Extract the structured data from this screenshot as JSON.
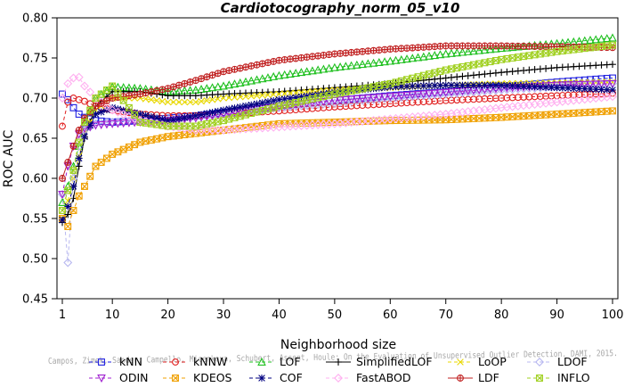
{
  "chart_data": {
    "type": "line",
    "title": "Cardiotocography_norm_05_v10",
    "xlabel": "Neighborhood size",
    "ylabel": "ROC AUC",
    "xlim": [
      1,
      100
    ],
    "ylim": [
      0.45,
      0.8
    ],
    "xticks": [
      1,
      10,
      20,
      30,
      40,
      50,
      60,
      70,
      80,
      90,
      100
    ],
    "yticks": [
      "0.45",
      "0.50",
      "0.55",
      "0.60",
      "0.65",
      "0.70",
      "0.75",
      "0.80"
    ],
    "grid": false,
    "legend_position": "bottom",
    "watermark": "Campos, Zimek, Sander, Campello, Micenkova, Schubert, Assent, Houle: On the Evaluation of Unsupervised Outlier Detection. DAMI, 2015.",
    "series": [
      {
        "name": "kNN",
        "color": "#2020e0",
        "marker": "square",
        "dash": "4,3",
        "points": [
          [
            1,
            0.705
          ],
          [
            2,
            0.698
          ],
          [
            3,
            0.688
          ],
          [
            4,
            0.68
          ],
          [
            5,
            0.676
          ],
          [
            7,
            0.672
          ],
          [
            10,
            0.67
          ],
          [
            15,
            0.672
          ],
          [
            20,
            0.675
          ],
          [
            25,
            0.678
          ],
          [
            30,
            0.682
          ],
          [
            40,
            0.69
          ],
          [
            50,
            0.697
          ],
          [
            60,
            0.703
          ],
          [
            70,
            0.708
          ],
          [
            80,
            0.714
          ],
          [
            90,
            0.72
          ],
          [
            100,
            0.725
          ]
        ]
      },
      {
        "name": "kNNW",
        "color": "#e02020",
        "marker": "circle",
        "dash": "4,3",
        "points": [
          [
            1,
            0.665
          ],
          [
            2,
            0.695
          ],
          [
            3,
            0.7
          ],
          [
            4,
            0.698
          ],
          [
            5,
            0.696
          ],
          [
            7,
            0.69
          ],
          [
            10,
            0.685
          ],
          [
            15,
            0.68
          ],
          [
            20,
            0.678
          ],
          [
            25,
            0.678
          ],
          [
            30,
            0.68
          ],
          [
            40,
            0.684
          ],
          [
            50,
            0.689
          ],
          [
            60,
            0.693
          ],
          [
            70,
            0.697
          ],
          [
            80,
            0.7
          ],
          [
            90,
            0.703
          ],
          [
            100,
            0.706
          ]
        ]
      },
      {
        "name": "LOF",
        "color": "#20c020",
        "marker": "triangle-up",
        "dash": "4,3",
        "points": [
          [
            1,
            0.57
          ],
          [
            2,
            0.59
          ],
          [
            3,
            0.615
          ],
          [
            4,
            0.64
          ],
          [
            5,
            0.668
          ],
          [
            7,
            0.7
          ],
          [
            10,
            0.714
          ],
          [
            15,
            0.712
          ],
          [
            20,
            0.708
          ],
          [
            25,
            0.71
          ],
          [
            30,
            0.715
          ],
          [
            40,
            0.728
          ],
          [
            50,
            0.738
          ],
          [
            60,
            0.746
          ],
          [
            70,
            0.755
          ],
          [
            80,
            0.762
          ],
          [
            90,
            0.768
          ],
          [
            100,
            0.775
          ]
        ]
      },
      {
        "name": "SimplifiedLOF",
        "color": "#000000",
        "marker": "plus",
        "dash": "",
        "points": [
          [
            1,
            0.545
          ],
          [
            2,
            0.555
          ],
          [
            3,
            0.575
          ],
          [
            4,
            0.615
          ],
          [
            5,
            0.65
          ],
          [
            7,
            0.69
          ],
          [
            10,
            0.708
          ],
          [
            15,
            0.708
          ],
          [
            20,
            0.703
          ],
          [
            25,
            0.703
          ],
          [
            30,
            0.705
          ],
          [
            40,
            0.708
          ],
          [
            50,
            0.713
          ],
          [
            60,
            0.718
          ],
          [
            70,
            0.725
          ],
          [
            80,
            0.732
          ],
          [
            90,
            0.738
          ],
          [
            100,
            0.742
          ]
        ]
      },
      {
        "name": "LoOP",
        "color": "#e8d800",
        "marker": "x",
        "dash": "4,3",
        "points": [
          [
            1,
            0.55
          ],
          [
            2,
            0.572
          ],
          [
            3,
            0.6
          ],
          [
            4,
            0.628
          ],
          [
            5,
            0.655
          ],
          [
            7,
            0.685
          ],
          [
            10,
            0.7
          ],
          [
            15,
            0.7
          ],
          [
            20,
            0.695
          ],
          [
            25,
            0.695
          ],
          [
            30,
            0.7
          ],
          [
            40,
            0.705
          ],
          [
            50,
            0.71
          ],
          [
            60,
            0.713
          ],
          [
            70,
            0.716
          ],
          [
            80,
            0.718
          ],
          [
            90,
            0.719
          ],
          [
            100,
            0.72
          ]
        ]
      },
      {
        "name": "LDOF",
        "color": "#b8b8f0",
        "marker": "diamond",
        "dash": "4,3",
        "points": [
          [
            1,
            0.58
          ],
          [
            2,
            0.495
          ],
          [
            3,
            0.6
          ],
          [
            4,
            0.64
          ],
          [
            5,
            0.66
          ],
          [
            7,
            0.668
          ],
          [
            10,
            0.67
          ],
          [
            15,
            0.672
          ],
          [
            20,
            0.673
          ],
          [
            25,
            0.676
          ],
          [
            30,
            0.68
          ],
          [
            40,
            0.688
          ],
          [
            50,
            0.694
          ],
          [
            60,
            0.7
          ],
          [
            70,
            0.705
          ],
          [
            80,
            0.71
          ],
          [
            90,
            0.714
          ],
          [
            100,
            0.718
          ]
        ]
      },
      {
        "name": "ODIN",
        "color": "#a020d0",
        "marker": "triangle-down",
        "dash": "4,3",
        "points": [
          [
            1,
            0.58
          ],
          [
            2,
            0.615
          ],
          [
            3,
            0.64
          ],
          [
            4,
            0.655
          ],
          [
            5,
            0.662
          ],
          [
            7,
            0.666
          ],
          [
            10,
            0.668
          ],
          [
            15,
            0.67
          ],
          [
            20,
            0.672
          ],
          [
            25,
            0.675
          ],
          [
            30,
            0.68
          ],
          [
            40,
            0.69
          ],
          [
            50,
            0.697
          ],
          [
            60,
            0.702
          ],
          [
            70,
            0.707
          ],
          [
            80,
            0.712
          ],
          [
            90,
            0.716
          ],
          [
            100,
            0.718
          ]
        ]
      },
      {
        "name": "KDEOS",
        "color": "#f0a000",
        "marker": "square-x",
        "dash": "4,3",
        "points": [
          [
            1,
            0.55
          ],
          [
            2,
            0.54
          ],
          [
            3,
            0.56
          ],
          [
            4,
            0.578
          ],
          [
            5,
            0.59
          ],
          [
            7,
            0.615
          ],
          [
            10,
            0.63
          ],
          [
            15,
            0.645
          ],
          [
            20,
            0.652
          ],
          [
            25,
            0.656
          ],
          [
            30,
            0.66
          ],
          [
            40,
            0.668
          ],
          [
            50,
            0.67
          ],
          [
            60,
            0.672
          ],
          [
            70,
            0.673
          ],
          [
            80,
            0.676
          ],
          [
            90,
            0.68
          ],
          [
            100,
            0.684
          ]
        ]
      },
      {
        "name": "COF",
        "color": "#000080",
        "marker": "asterisk",
        "dash": "4,3",
        "points": [
          [
            1,
            0.548
          ],
          [
            2,
            0.565
          ],
          [
            3,
            0.59
          ],
          [
            4,
            0.625
          ],
          [
            5,
            0.652
          ],
          [
            7,
            0.68
          ],
          [
            10,
            0.688
          ],
          [
            15,
            0.68
          ],
          [
            20,
            0.672
          ],
          [
            25,
            0.678
          ],
          [
            30,
            0.685
          ],
          [
            40,
            0.698
          ],
          [
            50,
            0.707
          ],
          [
            60,
            0.714
          ],
          [
            70,
            0.716
          ],
          [
            80,
            0.716
          ],
          [
            90,
            0.713
          ],
          [
            100,
            0.71
          ]
        ]
      },
      {
        "name": "FastABOD",
        "color": "#ffb0f0",
        "marker": "diamond",
        "dash": "4,3",
        "points": [
          [
            1,
            0.7
          ],
          [
            2,
            0.718
          ],
          [
            3,
            0.725
          ],
          [
            4,
            0.726
          ],
          [
            5,
            0.715
          ],
          [
            7,
            0.7
          ],
          [
            10,
            0.685
          ],
          [
            15,
            0.672
          ],
          [
            20,
            0.665
          ],
          [
            25,
            0.66
          ],
          [
            30,
            0.66
          ],
          [
            40,
            0.664
          ],
          [
            50,
            0.668
          ],
          [
            60,
            0.674
          ],
          [
            70,
            0.68
          ],
          [
            80,
            0.688
          ],
          [
            90,
            0.695
          ],
          [
            100,
            0.702
          ]
        ]
      },
      {
        "name": "LDF",
        "color": "#c02020",
        "marker": "circle-plus",
        "dash": "",
        "points": [
          [
            1,
            0.6
          ],
          [
            2,
            0.62
          ],
          [
            3,
            0.64
          ],
          [
            4,
            0.66
          ],
          [
            5,
            0.675
          ],
          [
            7,
            0.69
          ],
          [
            10,
            0.7
          ],
          [
            15,
            0.705
          ],
          [
            20,
            0.712
          ],
          [
            25,
            0.722
          ],
          [
            30,
            0.733
          ],
          [
            40,
            0.747
          ],
          [
            50,
            0.755
          ],
          [
            60,
            0.761
          ],
          [
            70,
            0.765
          ],
          [
            80,
            0.765
          ],
          [
            90,
            0.764
          ],
          [
            100,
            0.763
          ]
        ]
      },
      {
        "name": "INFLO",
        "color": "#a0d020",
        "marker": "square-x",
        "dash": "4,3",
        "points": [
          [
            1,
            0.56
          ],
          [
            2,
            0.585
          ],
          [
            3,
            0.61
          ],
          [
            4,
            0.645
          ],
          [
            5,
            0.67
          ],
          [
            7,
            0.7
          ],
          [
            10,
            0.715
          ],
          [
            15,
            0.67
          ],
          [
            20,
            0.665
          ],
          [
            25,
            0.665
          ],
          [
            30,
            0.672
          ],
          [
            40,
            0.69
          ],
          [
            50,
            0.705
          ],
          [
            60,
            0.718
          ],
          [
            70,
            0.735
          ],
          [
            80,
            0.748
          ],
          [
            90,
            0.758
          ],
          [
            100,
            0.766
          ]
        ]
      }
    ]
  }
}
